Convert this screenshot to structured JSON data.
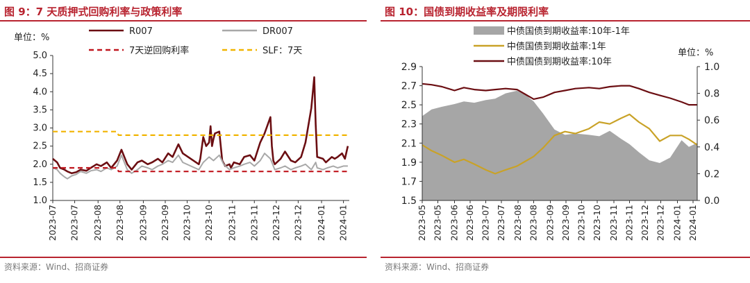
{
  "chart_data": [
    {
      "type": "line",
      "title": "图 9：7 天质押式回购利率与政策利率",
      "unit_label": "单位：%",
      "source": "资料来源：Wind、招商证券",
      "ylim": [
        1.0,
        5.0
      ],
      "yticks": [
        "1.0",
        "1.5",
        "2.0",
        "2.5",
        "3.0",
        "3.5",
        "4.0",
        "4.5",
        "5.0"
      ],
      "x_range": [
        "2023-07-01",
        "2024-01-20"
      ],
      "xticks": [
        "2023-07",
        "2023-08",
        "2023-09",
        "2023-10",
        "2023-11",
        "2023-12",
        "2024-01"
      ],
      "xtick_labels": [
        "2023-07",
        "2023-07",
        "2023-08",
        "2023-08",
        "2023-09",
        "2023-09",
        "2023-10",
        "2023-10",
        "2023-11",
        "2023-11",
        "2023-12",
        "2023-12",
        "2024-01",
        "2024-01"
      ],
      "xtick_dates": [
        "2023-07-01",
        "2023-07-16",
        "2023-08-01",
        "2023-08-16",
        "2023-09-01",
        "2023-09-16",
        "2023-10-01",
        "2023-10-16",
        "2023-11-01",
        "2023-11-16",
        "2023-12-01",
        "2023-12-16",
        "2024-01-01",
        "2024-01-16"
      ],
      "grid": false,
      "legend": "top",
      "series": [
        {
          "name": "R007",
          "color": "#6b0e12",
          "style": "solid",
          "x": [
            "2023-07-01",
            "2023-07-04",
            "2023-07-06",
            "2023-07-09",
            "2023-07-11",
            "2023-07-14",
            "2023-07-17",
            "2023-07-20",
            "2023-07-24",
            "2023-07-27",
            "2023-07-31",
            "2023-08-03",
            "2023-08-07",
            "2023-08-10",
            "2023-08-14",
            "2023-08-17",
            "2023-08-21",
            "2023-08-24",
            "2023-08-28",
            "2023-08-31",
            "2023-09-04",
            "2023-09-07",
            "2023-09-11",
            "2023-09-14",
            "2023-09-18",
            "2023-09-21",
            "2023-09-25",
            "2023-09-28",
            "2023-10-09",
            "2023-10-10",
            "2023-10-12",
            "2023-10-14",
            "2023-10-16",
            "2023-10-17",
            "2023-10-18",
            "2023-10-19",
            "2023-10-20",
            "2023-10-23",
            "2023-10-25",
            "2023-10-27",
            "2023-10-30",
            "2023-10-31",
            "2023-11-02",
            "2023-11-06",
            "2023-11-09",
            "2023-11-13",
            "2023-11-16",
            "2023-11-20",
            "2023-11-23",
            "2023-11-27",
            "2023-11-28",
            "2023-11-29",
            "2023-11-30",
            "2023-12-04",
            "2023-12-07",
            "2023-12-11",
            "2023-12-14",
            "2023-12-18",
            "2023-12-21",
            "2023-12-25",
            "2023-12-27",
            "2023-12-28",
            "2023-12-29",
            "2024-01-02",
            "2024-01-04",
            "2024-01-08",
            "2024-01-10",
            "2024-01-12",
            "2024-01-15",
            "2024-01-17",
            "2024-01-19"
          ],
          "y": [
            2.15,
            2.05,
            1.9,
            1.85,
            1.8,
            1.75,
            1.78,
            1.85,
            1.82,
            1.9,
            2.0,
            1.95,
            2.05,
            1.9,
            2.1,
            2.4,
            2.0,
            1.85,
            2.05,
            2.1,
            2.0,
            2.05,
            2.15,
            2.05,
            2.3,
            2.2,
            2.55,
            2.3,
            2.0,
            2.15,
            2.75,
            2.5,
            2.6,
            3.05,
            2.5,
            2.7,
            2.85,
            2.9,
            2.1,
            1.95,
            2.0,
            1.9,
            2.05,
            2.0,
            2.2,
            2.25,
            2.1,
            2.6,
            2.85,
            3.3,
            2.5,
            2.1,
            2.0,
            2.15,
            2.35,
            2.1,
            2.05,
            2.2,
            2.6,
            3.55,
            4.4,
            3.1,
            2.2,
            2.15,
            2.05,
            2.2,
            2.15,
            2.2,
            2.3,
            2.15,
            2.5
          ]
        },
        {
          "name": "DR007",
          "color": "#a8a8a8",
          "style": "solid",
          "x": [
            "2023-07-01",
            "2023-07-04",
            "2023-07-06",
            "2023-07-09",
            "2023-07-11",
            "2023-07-14",
            "2023-07-17",
            "2023-07-20",
            "2023-07-24",
            "2023-07-27",
            "2023-07-31",
            "2023-08-03",
            "2023-08-07",
            "2023-08-10",
            "2023-08-14",
            "2023-08-17",
            "2023-08-21",
            "2023-08-24",
            "2023-08-28",
            "2023-08-31",
            "2023-09-04",
            "2023-09-07",
            "2023-09-11",
            "2023-09-14",
            "2023-09-18",
            "2023-09-21",
            "2023-09-25",
            "2023-09-28",
            "2023-10-09",
            "2023-10-12",
            "2023-10-16",
            "2023-10-19",
            "2023-10-23",
            "2023-10-26",
            "2023-10-30",
            "2023-11-02",
            "2023-11-06",
            "2023-11-09",
            "2023-11-13",
            "2023-11-16",
            "2023-11-20",
            "2023-11-23",
            "2023-11-27",
            "2023-11-30",
            "2023-12-04",
            "2023-12-07",
            "2023-12-11",
            "2023-12-14",
            "2023-12-18",
            "2023-12-21",
            "2023-12-25",
            "2023-12-28",
            "2023-12-29",
            "2024-01-02",
            "2024-01-05",
            "2024-01-09",
            "2024-01-12",
            "2024-01-16",
            "2024-01-19"
          ],
          "y": [
            1.9,
            1.85,
            1.75,
            1.65,
            1.6,
            1.68,
            1.72,
            1.8,
            1.75,
            1.82,
            1.85,
            1.8,
            1.9,
            1.85,
            1.95,
            2.25,
            1.85,
            1.75,
            1.85,
            1.95,
            1.9,
            1.85,
            1.95,
            2.0,
            2.1,
            2.05,
            2.25,
            2.05,
            1.85,
            2.05,
            2.2,
            2.1,
            2.25,
            2.0,
            1.85,
            1.9,
            1.95,
            2.0,
            2.05,
            1.95,
            2.1,
            2.3,
            2.15,
            1.85,
            1.9,
            1.95,
            1.85,
            1.9,
            1.95,
            2.0,
            1.85,
            2.05,
            1.9,
            1.85,
            1.9,
            1.95,
            1.9,
            1.95,
            1.95
          ]
        },
        {
          "name": "7天逆回购利率",
          "color": "#c0151d",
          "style": "dashed",
          "x": [
            "2023-07-01",
            "2023-08-14",
            "2023-08-15",
            "2024-01-20"
          ],
          "y": [
            1.9,
            1.9,
            1.8,
            1.8
          ]
        },
        {
          "name": "SLF：7天",
          "color": "#f1b400",
          "style": "dashed",
          "x": [
            "2023-07-01",
            "2023-08-14",
            "2023-08-15",
            "2024-01-20"
          ],
          "y": [
            2.9,
            2.9,
            2.8,
            2.8
          ]
        }
      ]
    },
    {
      "type": "area",
      "title": "图 10：国债到期收益率及期限利率",
      "unit_label": "单位：%",
      "source": "资料来源：Wind、招商证券",
      "ylim_left": [
        1.5,
        2.9
      ],
      "yticks_left": [
        "1.5",
        "1.7",
        "1.9",
        "2.1",
        "2.3",
        "2.5",
        "2.7",
        "2.9"
      ],
      "ylim_right": [
        0.0,
        1.0
      ],
      "yticks_right": [
        "0.0",
        "0.2",
        "0.4",
        "0.6",
        "0.8",
        "1.0"
      ],
      "x_range": [
        "2023-05-01",
        "2024-01-20"
      ],
      "xticks": [
        "2023-05",
        "2023-06",
        "2023-07",
        "2023-08",
        "2023-09",
        "2023-10",
        "2023-11",
        "2023-12",
        "2024-01"
      ],
      "xtick_labels": [
        "2023-05",
        "2023-05",
        "2023-06",
        "2023-06",
        "2023-07",
        "2023-07",
        "2023-08",
        "2023-08",
        "2023-09",
        "2023-09",
        "2023-10",
        "2023-10",
        "2023-11",
        "2023-11",
        "2023-12",
        "2023-12",
        "2024-01",
        "2024-01"
      ],
      "xtick_dates": [
        "2023-05-01",
        "2023-05-16",
        "2023-06-01",
        "2023-06-16",
        "2023-07-01",
        "2023-07-16",
        "2023-08-01",
        "2023-08-16",
        "2023-09-01",
        "2023-09-16",
        "2023-10-01",
        "2023-10-16",
        "2023-11-01",
        "2023-11-16",
        "2023-12-01",
        "2023-12-16",
        "2024-01-01",
        "2024-01-16"
      ],
      "grid": false,
      "legend": "top-left",
      "series": [
        {
          "name": "中债国债到期收益率:10年-1年",
          "color": "#a6a6a6",
          "axis": "right",
          "style": "area",
          "x": [
            "2023-05-01",
            "2023-05-10",
            "2023-05-20",
            "2023-06-01",
            "2023-06-10",
            "2023-06-20",
            "2023-07-01",
            "2023-07-10",
            "2023-07-20",
            "2023-07-31",
            "2023-08-08",
            "2023-08-16",
            "2023-08-25",
            "2023-09-05",
            "2023-09-15",
            "2023-09-25",
            "2023-10-08",
            "2023-10-18",
            "2023-10-28",
            "2023-11-08",
            "2023-11-16",
            "2023-11-25",
            "2023-12-05",
            "2023-12-15",
            "2023-12-25",
            "2024-01-05",
            "2024-01-12",
            "2024-01-20"
          ],
          "y": [
            0.63,
            0.68,
            0.7,
            0.72,
            0.74,
            0.73,
            0.75,
            0.76,
            0.8,
            0.82,
            0.79,
            0.74,
            0.65,
            0.53,
            0.49,
            0.5,
            0.49,
            0.48,
            0.52,
            0.46,
            0.42,
            0.36,
            0.3,
            0.28,
            0.32,
            0.45,
            0.4,
            0.43
          ]
        },
        {
          "name": "中债国债到期收益率:1年",
          "color": "#c9a227",
          "axis": "left",
          "style": "solid",
          "x": [
            "2023-05-01",
            "2023-05-10",
            "2023-05-20",
            "2023-06-01",
            "2023-06-10",
            "2023-06-20",
            "2023-07-01",
            "2023-07-10",
            "2023-07-20",
            "2023-07-31",
            "2023-08-08",
            "2023-08-16",
            "2023-08-25",
            "2023-09-05",
            "2023-09-15",
            "2023-09-25",
            "2023-10-08",
            "2023-10-18",
            "2023-10-28",
            "2023-11-08",
            "2023-11-16",
            "2023-11-25",
            "2023-12-05",
            "2023-12-15",
            "2023-12-25",
            "2024-01-05",
            "2024-01-12",
            "2024-01-20"
          ],
          "y": [
            2.08,
            2.02,
            1.97,
            1.9,
            1.93,
            1.88,
            1.82,
            1.78,
            1.82,
            1.86,
            1.91,
            1.96,
            2.05,
            2.18,
            2.22,
            2.2,
            2.25,
            2.32,
            2.3,
            2.36,
            2.4,
            2.32,
            2.25,
            2.12,
            2.18,
            2.18,
            2.14,
            2.08
          ]
        },
        {
          "name": "中债国债到期收益率:10年",
          "color": "#6b0e12",
          "axis": "left",
          "style": "solid",
          "x": [
            "2023-05-01",
            "2023-05-10",
            "2023-05-20",
            "2023-06-01",
            "2023-06-10",
            "2023-06-20",
            "2023-07-01",
            "2023-07-10",
            "2023-07-20",
            "2023-07-31",
            "2023-08-08",
            "2023-08-16",
            "2023-08-25",
            "2023-09-05",
            "2023-09-15",
            "2023-09-25",
            "2023-10-08",
            "2023-10-18",
            "2023-10-28",
            "2023-11-08",
            "2023-11-16",
            "2023-11-25",
            "2023-12-05",
            "2023-12-15",
            "2023-12-25",
            "2024-01-05",
            "2024-01-12",
            "2024-01-20"
          ],
          "y": [
            2.72,
            2.71,
            2.69,
            2.65,
            2.68,
            2.66,
            2.65,
            2.66,
            2.67,
            2.66,
            2.61,
            2.56,
            2.58,
            2.63,
            2.65,
            2.67,
            2.68,
            2.67,
            2.69,
            2.7,
            2.7,
            2.67,
            2.63,
            2.6,
            2.57,
            2.53,
            2.5,
            2.5
          ]
        }
      ]
    }
  ]
}
